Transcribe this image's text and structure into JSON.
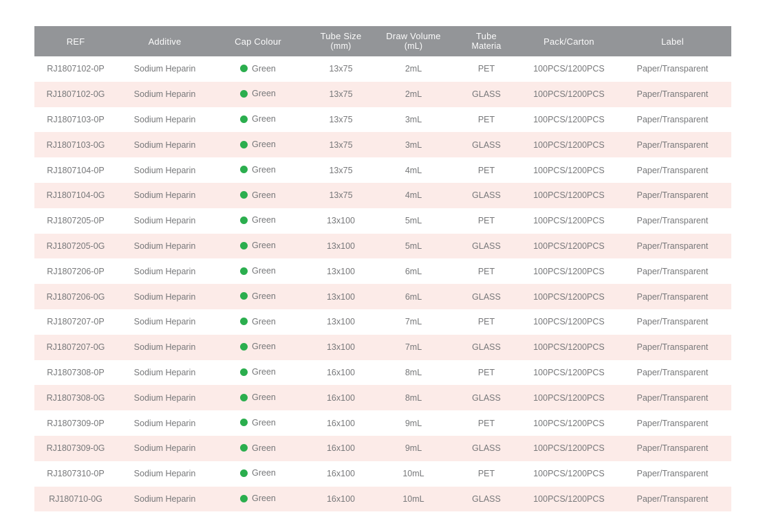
{
  "colors": {
    "header_bg": "#939598",
    "header_text": "#fafafa",
    "row_alt_bg": "#fcebe8",
    "row_bg": "#ffffff",
    "body_text": "#77787a",
    "cap_dot_green": "#2bae4e"
  },
  "table": {
    "columns": [
      {
        "key": "ref",
        "label": "REF",
        "label2": ""
      },
      {
        "key": "additive",
        "label": "Additive",
        "label2": ""
      },
      {
        "key": "cap_colour",
        "label": "Cap Colour",
        "label2": ""
      },
      {
        "key": "tube_size",
        "label": "Tube Size",
        "label2": "(mm)"
      },
      {
        "key": "draw_volume",
        "label": "Draw Volume",
        "label2": "(mL)"
      },
      {
        "key": "tube_material",
        "label": "Tube",
        "label2": "Materia"
      },
      {
        "key": "pack_carton",
        "label": "Pack/Carton",
        "label2": ""
      },
      {
        "key": "label",
        "label": "Label",
        "label2": ""
      }
    ],
    "rows": [
      {
        "ref": "RJ1807102-0P",
        "additive": "Sodium Heparin",
        "cap_colour": "Green",
        "tube_size": "13x75",
        "draw_volume": "2mL",
        "tube_material": "PET",
        "pack_carton": "100PCS/1200PCS",
        "label": "Paper/Transparent"
      },
      {
        "ref": "RJ1807102-0G",
        "additive": "Sodium Heparin",
        "cap_colour": "Green",
        "tube_size": "13x75",
        "draw_volume": "2mL",
        "tube_material": "GLASS",
        "pack_carton": "100PCS/1200PCS",
        "label": "Paper/Transparent"
      },
      {
        "ref": "RJ1807103-0P",
        "additive": "Sodium Heparin",
        "cap_colour": "Green",
        "tube_size": "13x75",
        "draw_volume": "3mL",
        "tube_material": "PET",
        "pack_carton": "100PCS/1200PCS",
        "label": "Paper/Transparent"
      },
      {
        "ref": "RJ1807103-0G",
        "additive": "Sodium Heparin",
        "cap_colour": "Green",
        "tube_size": "13x75",
        "draw_volume": "3mL",
        "tube_material": "GLASS",
        "pack_carton": "100PCS/1200PCS",
        "label": "Paper/Transparent"
      },
      {
        "ref": "RJ1807104-0P",
        "additive": "Sodium Heparin",
        "cap_colour": "Green",
        "tube_size": "13x75",
        "draw_volume": "4mL",
        "tube_material": "PET",
        "pack_carton": "100PCS/1200PCS",
        "label": "Paper/Transparent"
      },
      {
        "ref": "RJ1807104-0G",
        "additive": "Sodium Heparin",
        "cap_colour": "Green",
        "tube_size": "13x75",
        "draw_volume": "4mL",
        "tube_material": "GLASS",
        "pack_carton": "100PCS/1200PCS",
        "label": "Paper/Transparent"
      },
      {
        "ref": "RJ1807205-0P",
        "additive": "Sodium Heparin",
        "cap_colour": "Green",
        "tube_size": "13x100",
        "draw_volume": "5mL",
        "tube_material": "PET",
        "pack_carton": "100PCS/1200PCS",
        "label": "Paper/Transparent"
      },
      {
        "ref": "RJ1807205-0G",
        "additive": "Sodium Heparin",
        "cap_colour": "Green",
        "tube_size": "13x100",
        "draw_volume": "5mL",
        "tube_material": "GLASS",
        "pack_carton": "100PCS/1200PCS",
        "label": "Paper/Transparent"
      },
      {
        "ref": "RJ1807206-0P",
        "additive": "Sodium Heparin",
        "cap_colour": "Green",
        "tube_size": "13x100",
        "draw_volume": "6mL",
        "tube_material": "PET",
        "pack_carton": "100PCS/1200PCS",
        "label": "Paper/Transparent"
      },
      {
        "ref": "RJ1807206-0G",
        "additive": "Sodium Heparin",
        "cap_colour": "Green",
        "tube_size": "13x100",
        "draw_volume": "6mL",
        "tube_material": "GLASS",
        "pack_carton": "100PCS/1200PCS",
        "label": "Paper/Transparent"
      },
      {
        "ref": "RJ1807207-0P",
        "additive": "Sodium Heparin",
        "cap_colour": "Green",
        "tube_size": "13x100",
        "draw_volume": "7mL",
        "tube_material": "PET",
        "pack_carton": "100PCS/1200PCS",
        "label": "Paper/Transparent"
      },
      {
        "ref": "RJ1807207-0G",
        "additive": "Sodium Heparin",
        "cap_colour": "Green",
        "tube_size": "13x100",
        "draw_volume": "7mL",
        "tube_material": "GLASS",
        "pack_carton": "100PCS/1200PCS",
        "label": "Paper/Transparent"
      },
      {
        "ref": "RJ1807308-0P",
        "additive": "Sodium Heparin",
        "cap_colour": "Green",
        "tube_size": "16x100",
        "draw_volume": "8mL",
        "tube_material": "PET",
        "pack_carton": "100PCS/1200PCS",
        "label": "Paper/Transparent"
      },
      {
        "ref": "RJ1807308-0G",
        "additive": "Sodium Heparin",
        "cap_colour": "Green",
        "tube_size": "16x100",
        "draw_volume": "8mL",
        "tube_material": "GLASS",
        "pack_carton": "100PCS/1200PCS",
        "label": "Paper/Transparent"
      },
      {
        "ref": "RJ1807309-0P",
        "additive": "Sodium Heparin",
        "cap_colour": "Green",
        "tube_size": "16x100",
        "draw_volume": "9mL",
        "tube_material": "PET",
        "pack_carton": "100PCS/1200PCS",
        "label": "Paper/Transparent"
      },
      {
        "ref": "RJ1807309-0G",
        "additive": "Sodium Heparin",
        "cap_colour": "Green",
        "tube_size": "16x100",
        "draw_volume": "9mL",
        "tube_material": "GLASS",
        "pack_carton": "100PCS/1200PCS",
        "label": "Paper/Transparent"
      },
      {
        "ref": "RJ1807310-0P",
        "additive": "Sodium Heparin",
        "cap_colour": "Green",
        "tube_size": "16x100",
        "draw_volume": "10mL",
        "tube_material": "PET",
        "pack_carton": "100PCS/1200PCS",
        "label": "Paper/Transparent"
      },
      {
        "ref": "RJ180710-0G",
        "additive": "Sodium Heparin",
        "cap_colour": "Green",
        "tube_size": "16x100",
        "draw_volume": "10mL",
        "tube_material": "GLASS",
        "pack_carton": "100PCS/1200PCS",
        "label": "Paper/Transparent"
      }
    ]
  }
}
